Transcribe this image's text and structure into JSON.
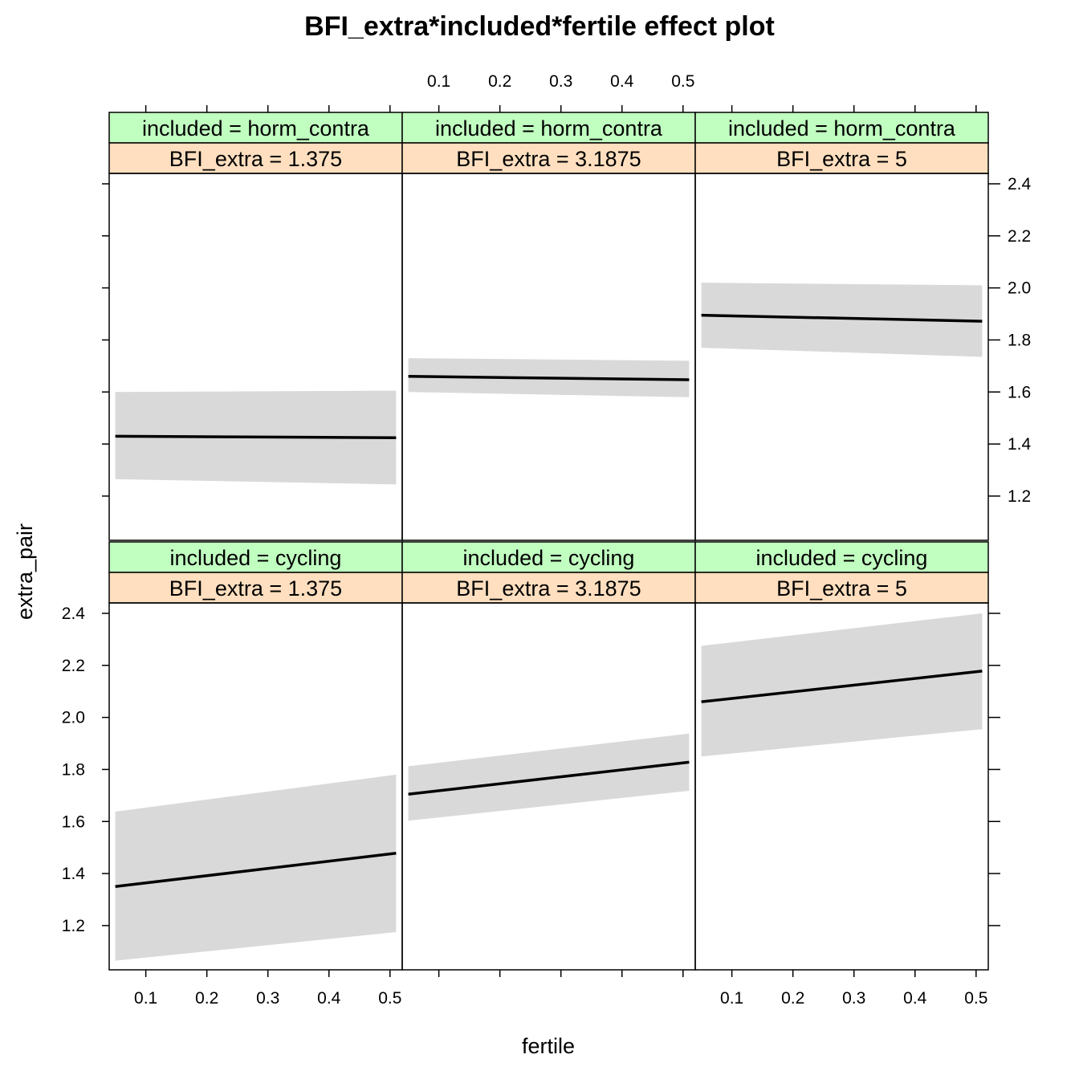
{
  "chart_data": {
    "type": "line",
    "title": "BFI_extra*included*fertile effect plot",
    "xlabel": "fertile",
    "ylabel": "extra_pair",
    "xlim": [
      0.04,
      0.52
    ],
    "ylim": [
      1.03,
      2.44
    ],
    "x_ticks": [
      0.1,
      0.2,
      0.3,
      0.4,
      0.5
    ],
    "x_tick_labels": [
      "0.1",
      "0.2",
      "0.3",
      "0.4",
      "0.5"
    ],
    "y_ticks": [
      1.2,
      1.4,
      1.6,
      1.8,
      2.0,
      2.2,
      2.4
    ],
    "y_tick_labels": [
      "1.2",
      "1.4",
      "1.6",
      "1.8",
      "2.0",
      "2.2",
      "2.4"
    ],
    "strip_colors": {
      "included": "#c1ffc1",
      "bfi": "#ffdfbf"
    },
    "band_color": "#d9d9d9",
    "line_color": "#000000",
    "panels": [
      {
        "row": 0,
        "col": 0,
        "included_label": "included = horm_contra",
        "bfi_label": "BFI_extra = 1.375",
        "x": [
          0.05,
          0.51
        ],
        "fit": [
          1.43,
          1.424
        ],
        "lower": [
          1.265,
          1.245
        ],
        "upper": [
          1.6,
          1.605
        ]
      },
      {
        "row": 0,
        "col": 1,
        "included_label": "included = horm_contra",
        "bfi_label": "BFI_extra = 3.1875",
        "x": [
          0.05,
          0.51
        ],
        "fit": [
          1.66,
          1.647
        ],
        "lower": [
          1.6,
          1.58
        ],
        "upper": [
          1.73,
          1.72
        ]
      },
      {
        "row": 0,
        "col": 2,
        "included_label": "included = horm_contra",
        "bfi_label": "BFI_extra = 5",
        "x": [
          0.05,
          0.51
        ],
        "fit": [
          1.895,
          1.872
        ],
        "lower": [
          1.77,
          1.735
        ],
        "upper": [
          2.02,
          2.01
        ]
      },
      {
        "row": 1,
        "col": 0,
        "included_label": "included = cycling",
        "bfi_label": "BFI_extra = 1.375",
        "x": [
          0.05,
          0.51
        ],
        "fit": [
          1.35,
          1.478
        ],
        "lower": [
          1.065,
          1.175
        ],
        "upper": [
          1.638,
          1.78
        ]
      },
      {
        "row": 1,
        "col": 1,
        "included_label": "included = cycling",
        "bfi_label": "BFI_extra = 3.1875",
        "x": [
          0.05,
          0.51
        ],
        "fit": [
          1.705,
          1.828
        ],
        "lower": [
          1.603,
          1.718
        ],
        "upper": [
          1.812,
          1.938
        ]
      },
      {
        "row": 1,
        "col": 2,
        "included_label": "included = cycling",
        "bfi_label": "BFI_extra = 5",
        "x": [
          0.05,
          0.51
        ],
        "fit": [
          2.06,
          2.178
        ],
        "lower": [
          1.85,
          1.955
        ],
        "upper": [
          2.275,
          2.4
        ]
      }
    ]
  }
}
